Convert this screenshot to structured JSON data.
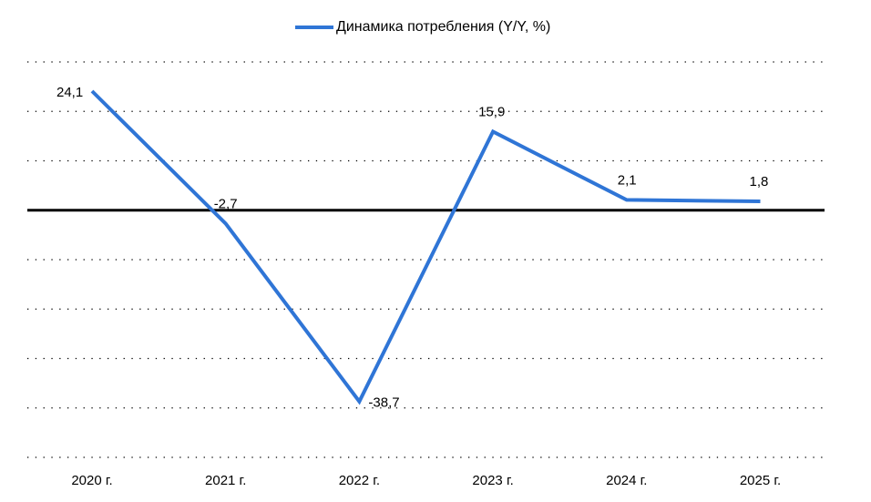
{
  "chart_data": {
    "type": "line",
    "categories": [
      "2020 г.",
      "2021 г.",
      "2022 г.",
      "2023 г.",
      "2024 г.",
      "2025 г."
    ],
    "series": [
      {
        "name": "Динамика потребления (Y/Y, %)",
        "values": [
          24.1,
          -2.7,
          -38.7,
          15.9,
          2.1,
          1.8
        ],
        "labels": [
          "24,1",
          "-2,7",
          "-38,7",
          "15,9",
          "2,1",
          "1,8"
        ],
        "color": "#2F75D6"
      }
    ],
    "title": "",
    "xlabel": "",
    "ylabel": "",
    "ylim": [
      -50,
      30
    ],
    "grid": true,
    "legend": "top-center",
    "zero_line": true
  }
}
